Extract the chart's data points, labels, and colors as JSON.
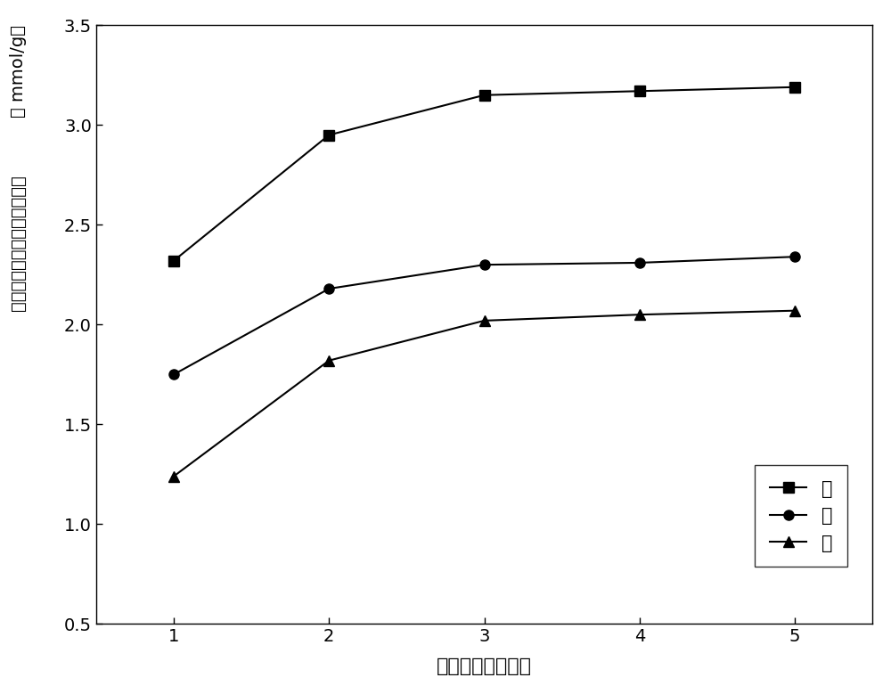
{
  "x": [
    1,
    2,
    3,
    4,
    5
  ],
  "series": [
    {
      "label": "铜",
      "values": [
        2.32,
        2.95,
        3.15,
        3.17,
        3.19
      ],
      "marker": "s",
      "color": "#000000"
    },
    {
      "label": "镞",
      "values": [
        1.75,
        2.18,
        2.3,
        2.31,
        2.34
      ],
      "marker": "o",
      "color": "#000000"
    },
    {
      "label": "锥",
      "values": [
        1.24,
        1.82,
        2.02,
        2.05,
        2.07
      ],
      "marker": "^",
      "color": "#000000"
    }
  ],
  "xlabel": "升降温次数（次）",
  "ylabel_top": "（ mmol/g）",
  "ylabel_main": "吸附材料对重金属的吸附能力",
  "xlim": [
    0.5,
    5.5
  ],
  "ylim": [
    0.5,
    3.5
  ],
  "yticks": [
    0.5,
    1.0,
    1.5,
    2.0,
    2.5,
    3.0,
    3.5
  ],
  "xticks": [
    1,
    2,
    3,
    4,
    5
  ],
  "background_color": "#ffffff",
  "linewidth": 1.5,
  "markersize": 8
}
